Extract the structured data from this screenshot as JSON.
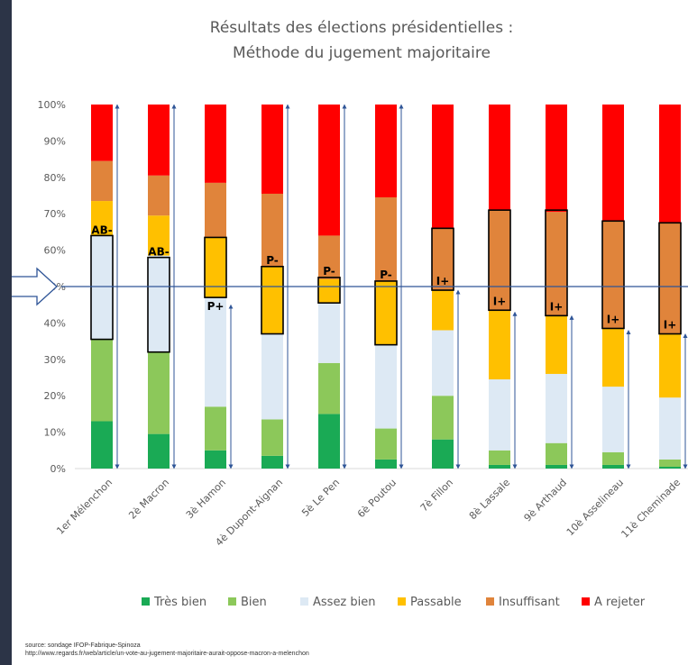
{
  "chart_data": {
    "type": "bar",
    "stacked": true,
    "title": "Résultats des élections présidentielles :",
    "subtitle": "Méthode du jugement majoritaire",
    "categories": [
      "1er Mélenchon",
      "2è Macron",
      "3è Hamon",
      "4è Dupont-Aignan",
      "5è Le Pen",
      "6è Poutou",
      "7è Fillon",
      "8è Lassale",
      "9è Arthaud",
      "10è Asselineau",
      "11è Cheminade"
    ],
    "series": [
      {
        "name": "Très bien",
        "color": "#1aaa55",
        "values": [
          13,
          9.5,
          5,
          3.5,
          15,
          2.5,
          8,
          1,
          1,
          1,
          0.5
        ]
      },
      {
        "name": "Bien",
        "color": "#8cc85a",
        "values": [
          22.5,
          22.5,
          12,
          10,
          14,
          8.5,
          12,
          4,
          6,
          3.5,
          2
        ]
      },
      {
        "name": "Assez bien",
        "color": "#dde9f4",
        "values": [
          28.5,
          26.5,
          30,
          23.5,
          16.5,
          23,
          18,
          19.5,
          19,
          18,
          17
        ]
      },
      {
        "name": "Passable",
        "color": "#ffc000",
        "values": [
          9.5,
          11,
          16.5,
          18.5,
          6.5,
          17.5,
          11,
          19,
          16,
          16,
          17.5
        ]
      },
      {
        "name": "Insuffisant",
        "color": "#e0843b",
        "values": [
          11,
          11,
          15,
          20,
          12,
          23,
          17,
          27.5,
          28.5,
          29.5,
          30.5
        ]
      },
      {
        "name": "A rejeter",
        "color": "#ff0000",
        "values": [
          15.5,
          19.5,
          21.5,
          24.5,
          36,
          25.5,
          34,
          29,
          29.5,
          32,
          32.5
        ]
      }
    ],
    "median_boxes": [
      {
        "index": 0,
        "lo": 35.5,
        "hi": 64,
        "label": "AB-"
      },
      {
        "index": 1,
        "lo": 32,
        "hi": 58,
        "label": "AB-"
      },
      {
        "index": 2,
        "lo": 47,
        "hi": 63.5,
        "label": "P+"
      },
      {
        "index": 3,
        "lo": 37,
        "hi": 55.5,
        "label": "P-"
      },
      {
        "index": 4,
        "lo": 45.5,
        "hi": 52.5,
        "label": "P-"
      },
      {
        "index": 5,
        "lo": 34,
        "hi": 51.5,
        "label": "P-"
      },
      {
        "index": 6,
        "lo": 49,
        "hi": 66,
        "label": "I+"
      },
      {
        "index": 7,
        "lo": 43.5,
        "hi": 71,
        "label": "I+"
      },
      {
        "index": 8,
        "lo": 42,
        "hi": 71,
        "label": "I+"
      },
      {
        "index": 9,
        "lo": 38.5,
        "hi": 68,
        "label": "I+"
      },
      {
        "index": 10,
        "lo": 37,
        "hi": 67.5,
        "label": "I+"
      }
    ],
    "yticks": [
      "0%",
      "10%",
      "20%",
      "30%",
      "40%",
      "50%",
      "60%",
      "70%",
      "80%",
      "90%",
      "100%"
    ],
    "ylim": [
      0,
      100
    ],
    "median_line": 50,
    "legend_position": "bottom"
  },
  "source": {
    "line1": "source: sondage IFOP-Fabrique-Spinoza",
    "line2": "http://www.regards.fr/web/article/un-vote-au-jugement-majoritaire-aurait-oppose-macron-a-melenchon"
  }
}
